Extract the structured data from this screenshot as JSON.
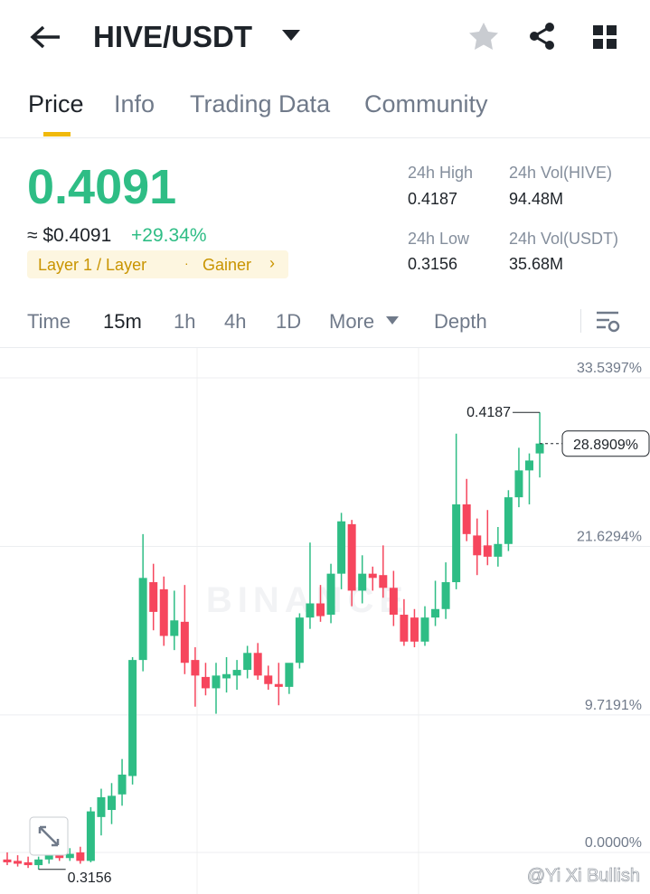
{
  "header": {
    "title": "HIVE/USDT"
  },
  "tabs": [
    "Price",
    "Info",
    "Trading Data",
    "Community"
  ],
  "ticker": {
    "price": "0.4091",
    "approx": "≈ $0.4091",
    "change": "+29.34%",
    "tags": [
      "Layer 1 / Layer",
      "Gainer"
    ],
    "stats": [
      {
        "label": "24h High",
        "value": "0.4187"
      },
      {
        "label": "24h Vol(HIVE)",
        "value": "94.48M"
      },
      {
        "label": "24h Low",
        "value": "0.3156"
      },
      {
        "label": "24h Vol(USDT)",
        "value": "35.68M"
      }
    ]
  },
  "intervals": [
    "Time",
    "15m",
    "1h",
    "4h",
    "1D",
    "More",
    "Depth"
  ],
  "chart_data": {
    "type": "candlestick",
    "watermark": "BINANCE",
    "credit": "@Yi Xi Bullish",
    "up_color": "#2ebd85",
    "down_color": "#f6465d",
    "ylim": [
      -2.94,
      35.65
    ],
    "yticks": [
      {
        "value": 33.5397,
        "label": "33.5397%"
      },
      {
        "value": 21.6294,
        "label": "21.6294%"
      },
      {
        "value": 9.7191,
        "label": "9.7191%"
      },
      {
        "value": 0,
        "label": "0.0000%"
      }
    ],
    "current": {
      "value": 28.8909,
      "label": "28.8909%"
    },
    "max_label": "0.4187",
    "min_label": "0.3156",
    "open": [
      -0.5,
      -0.6,
      -0.7,
      -0.9,
      -0.5,
      -0.2,
      -0.4,
      0,
      -0.6,
      2.5,
      3.0,
      4.1,
      5.4,
      13.6,
      19.1,
      18.6,
      15.3,
      16.3,
      13.6,
      12.4,
      11.6,
      12.3,
      12.5,
      12.9,
      14.1,
      12.5,
      11.9,
      11.7,
      13.4,
      16.6,
      17.6,
      16.8,
      19.7,
      23.2,
      18.5,
      19.7,
      19.6,
      18.7,
      16.8,
      16.6,
      14.9,
      16.6,
      17.2,
      19.1,
      24.6,
      22.4,
      21.7,
      20.9,
      21.8,
      25.1,
      27.0,
      28.2
    ],
    "high": [
      0,
      -0.2,
      -0.3,
      -0.3,
      0,
      0.2,
      0.3,
      0.4,
      3.2,
      4.5,
      4.9,
      6.6,
      13.8,
      22.5,
      20.4,
      19.5,
      18.5,
      18.9,
      14.5,
      13.4,
      13.4,
      13.8,
      13.6,
      14.6,
      14.8,
      13.2,
      13.4,
      13.3,
      16.9,
      21.9,
      18.9,
      20.4,
      24.0,
      23.5,
      21.0,
      20.2,
      21.7,
      19.9,
      17.9,
      17.2,
      17.4,
      19.2,
      20.5,
      29.6,
      26.4,
      23.6,
      24.2,
      23.0,
      25.6,
      28.6,
      28.2,
      31.1
    ],
    "low": [
      -0.9,
      -1,
      -1.1,
      -1.2,
      -0.8,
      -0.6,
      -0.6,
      -0.8,
      -0.7,
      1.2,
      2.0,
      3.3,
      4.8,
      12.8,
      15.7,
      14.6,
      14.3,
      12.6,
      10.3,
      11.1,
      9.8,
      11.3,
      11.5,
      12.3,
      12.2,
      11.5,
      10.4,
      11.2,
      13.0,
      15.8,
      16.3,
      16.2,
      18.6,
      17.4,
      17.6,
      18.5,
      18.0,
      16.0,
      14.6,
      14.5,
      14.6,
      16.0,
      16.5,
      18.6,
      22.0,
      19.6,
      20.3,
      20.2,
      21.3,
      24.4,
      24.6,
      26.5
    ],
    "close": [
      -0.7,
      -0.8,
      -0.9,
      -0.5,
      -0.2,
      -0.4,
      -0.1,
      -0.6,
      2.9,
      3.9,
      4.0,
      5.5,
      13.6,
      19.4,
      17.0,
      15.3,
      16.4,
      13.4,
      12.5,
      11.6,
      12.5,
      12.6,
      12.9,
      14.1,
      12.5,
      11.9,
      11.7,
      13.4,
      16.6,
      17.6,
      16.7,
      19.7,
      23.4,
      18.5,
      19.7,
      19.4,
      18.7,
      16.8,
      14.9,
      14.9,
      16.6,
      17.2,
      19.1,
      24.6,
      22.5,
      21.0,
      20.9,
      21.8,
      25.1,
      27.0,
      27.7,
      28.9
    ]
  }
}
